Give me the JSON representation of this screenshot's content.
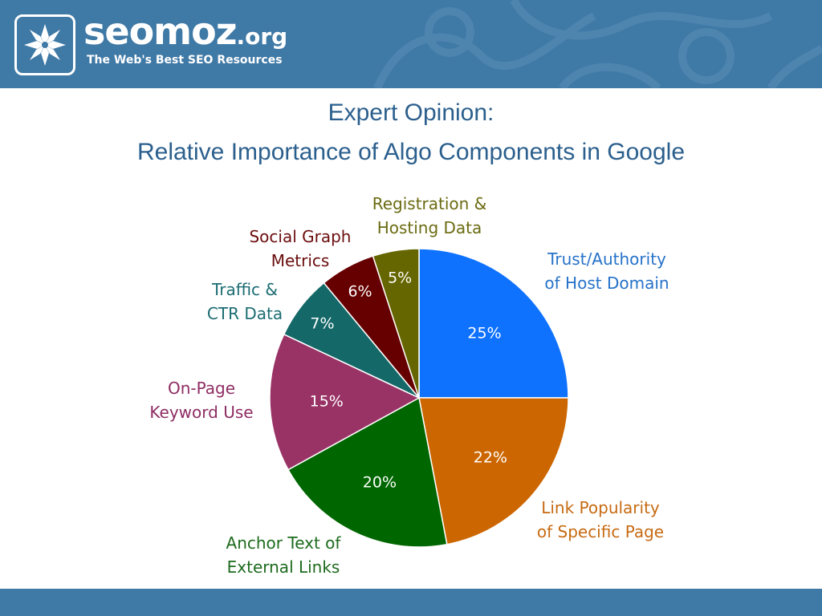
{
  "header": {
    "logo_name": "seomoz",
    "logo_suffix": ".org",
    "tagline": "The Web's Best SEO Resources",
    "background_color": "#3f79a6",
    "logo_icon": "star-mosaic-icon"
  },
  "slide": {
    "title_line1": "Expert Opinion:",
    "title_line2": "Relative Importance of Algo Components in Google",
    "title_color": "#2b5f8d"
  },
  "chart_data": {
    "type": "pie",
    "title": "",
    "start_angle_deg": 0,
    "direction": "clockwise",
    "slices": [
      {
        "label": [
          "Trust/Authority",
          "of Host Domain"
        ],
        "value": 25,
        "value_label": "25%",
        "color": "#0f72ff",
        "label_color": "#2672c9"
      },
      {
        "label": [
          "Link Popularity",
          "of Specific Page"
        ],
        "value": 22,
        "value_label": "22%",
        "color": "#cc6600",
        "label_color": "#c76a12"
      },
      {
        "label": [
          "Anchor Text of",
          "External Links"
        ],
        "value": 20,
        "value_label": "20%",
        "color": "#006600",
        "label_color": "#1d6b1d"
      },
      {
        "label": [
          "On-Page",
          "Keyword Use"
        ],
        "value": 15,
        "value_label": "15%",
        "color": "#993366",
        "label_color": "#8e2d63"
      },
      {
        "label": [
          "Traffic &",
          "CTR Data"
        ],
        "value": 7,
        "value_label": "7%",
        "color": "#156868",
        "label_color": "#1b6c72"
      },
      {
        "label": [
          "Social Graph",
          "Metrics"
        ],
        "value": 6,
        "value_label": "6%",
        "color": "#660000",
        "label_color": "#6b0d0d"
      },
      {
        "label": [
          "Registration &",
          "Hosting Data"
        ],
        "value": 5,
        "value_label": "5%",
        "color": "#666600",
        "label_color": "#6b6b12"
      }
    ]
  },
  "footer": {
    "background_color": "#3f79a6"
  }
}
